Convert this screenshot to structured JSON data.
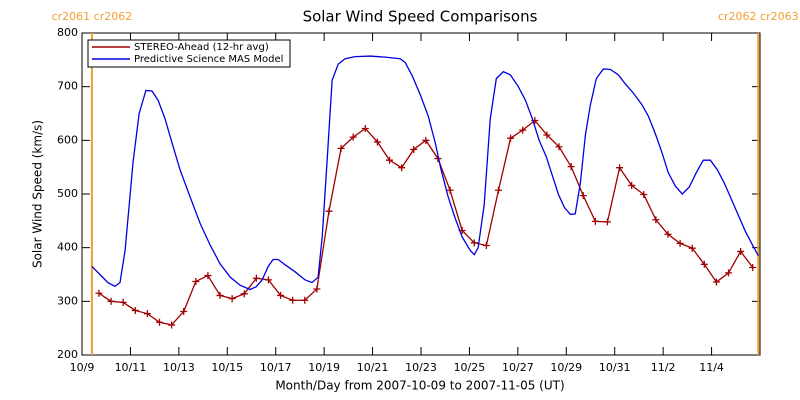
{
  "chart_data": {
    "type": "line",
    "title": "Solar Wind Speed Comparisons",
    "x_label": "Month/Day from 2007-10-09 to 2007-11-05 (UT)",
    "y_label": "Solar Wind Speed (km/s)",
    "xlim": [
      0,
      28
    ],
    "ylim": [
      200,
      800
    ],
    "yticks": [
      200,
      300,
      400,
      500,
      600,
      700,
      800
    ],
    "xticks": [
      {
        "value": 0,
        "label": "10/9"
      },
      {
        "value": 2,
        "label": "10/11"
      },
      {
        "value": 4,
        "label": "10/13"
      },
      {
        "value": 6,
        "label": "10/15"
      },
      {
        "value": 8,
        "label": "10/17"
      },
      {
        "value": 10,
        "label": "10/19"
      },
      {
        "value": 12,
        "label": "10/21"
      },
      {
        "value": 14,
        "label": "10/23"
      },
      {
        "value": 16,
        "label": "10/25"
      },
      {
        "value": 18,
        "label": "10/27"
      },
      {
        "value": 20,
        "label": "10/29"
      },
      {
        "value": 22,
        "label": "10/31"
      },
      {
        "value": 24,
        "label": "11/2"
      },
      {
        "value": 26,
        "label": "11/4"
      }
    ],
    "legend": "upper left",
    "annotations": [
      {
        "text": "cr2061 cr2062",
        "x": 0.41,
        "color": "#f0a030"
      },
      {
        "text": "cr2062 cr2063",
        "x": 27.93,
        "color": "#f0a030"
      }
    ],
    "series": [
      {
        "name": "STEREO-Ahead (12-hr avg)",
        "color": "#a00000",
        "marker": "+",
        "x": [
          0.7,
          1.2,
          1.7,
          2.2,
          2.7,
          3.2,
          3.7,
          4.2,
          4.7,
          5.2,
          5.7,
          6.2,
          6.7,
          7.2,
          7.7,
          8.2,
          8.7,
          9.2,
          9.7,
          10.2,
          10.7,
          11.2,
          11.7,
          12.2,
          12.7,
          13.2,
          13.7,
          14.2,
          14.7,
          15.2,
          15.7,
          16.2,
          16.7,
          17.2,
          17.7,
          18.2,
          18.7,
          19.2,
          19.7,
          20.2,
          20.7,
          21.2,
          21.7,
          22.2,
          22.7,
          23.2,
          23.7,
          24.2,
          24.7,
          25.2,
          25.7,
          26.2,
          26.7,
          27.2,
          27.7
        ],
        "values": [
          315,
          300,
          298,
          283,
          277,
          261,
          256,
          281,
          337,
          348,
          311,
          305,
          314,
          343,
          340,
          311,
          302,
          302,
          323,
          468,
          585,
          606,
          622,
          597,
          563,
          549,
          583,
          600,
          566,
          507,
          432,
          409,
          404,
          507,
          604,
          619,
          637,
          610,
          588,
          551,
          497,
          449,
          448,
          549,
          516,
          499,
          452,
          425,
          408,
          399,
          369,
          336,
          353,
          393,
          363
        ]
      },
      {
        "name": "Predictive Science MAS Model",
        "color": "#0000e0",
        "x": [
          0.41,
          0.74,
          1.07,
          1.36,
          1.57,
          1.78,
          2.11,
          2.36,
          2.64,
          2.89,
          3.14,
          3.43,
          3.72,
          4.05,
          4.46,
          4.88,
          5.29,
          5.7,
          6.12,
          6.53,
          6.94,
          7.19,
          7.44,
          7.69,
          7.89,
          8.1,
          8.39,
          8.8,
          9.21,
          9.5,
          9.75,
          9.92,
          10.12,
          10.33,
          10.58,
          10.87,
          11.28,
          11.9,
          12.52,
          13.14,
          13.35,
          13.64,
          13.97,
          14.3,
          14.59,
          14.83,
          15.12,
          15.41,
          15.7,
          16.03,
          16.2,
          16.36,
          16.61,
          16.86,
          17.11,
          17.4,
          17.69,
          18.02,
          18.31,
          18.6,
          18.88,
          19.17,
          19.42,
          19.67,
          19.92,
          20.17,
          20.37,
          20.58,
          20.79,
          20.99,
          21.24,
          21.53,
          21.82,
          22.15,
          22.44,
          22.77,
          23.1,
          23.39,
          23.68,
          23.93,
          24.21,
          24.5,
          24.79,
          25.08,
          25.37,
          25.66,
          25.95,
          26.24,
          26.53,
          26.82,
          27.11,
          27.4,
          27.69,
          27.93
        ],
        "values": [
          365,
          350,
          335,
          328,
          335,
          395,
          560,
          650,
          693,
          692,
          675,
          640,
          595,
          545,
          495,
          445,
          405,
          370,
          345,
          330,
          322,
          327,
          340,
          365,
          378,
          378,
          368,
          355,
          340,
          335,
          345,
          420,
          560,
          712,
          742,
          752,
          756,
          757,
          755,
          752,
          745,
          720,
          685,
          645,
          595,
          545,
          495,
          455,
          420,
          395,
          387,
          400,
          480,
          640,
          715,
          728,
          722,
          700,
          675,
          640,
          600,
          570,
          535,
          500,
          475,
          462,
          463,
          520,
          610,
          665,
          715,
          733,
          732,
          722,
          705,
          688,
          668,
          645,
          612,
          580,
          540,
          515,
          500,
          513,
          540,
          563,
          563,
          545,
          520,
          490,
          460,
          430,
          405,
          385
        ]
      }
    ]
  }
}
